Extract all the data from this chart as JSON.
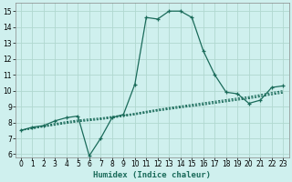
{
  "xlabel": "Humidex (Indice chaleur)",
  "bg_color": "#cff0ee",
  "grid_color": "#b0d8d0",
  "line_color": "#1a6b5a",
  "xlim": [
    -0.5,
    23.5
  ],
  "ylim": [
    5.8,
    15.5
  ],
  "xticks": [
    0,
    1,
    2,
    3,
    4,
    5,
    6,
    7,
    8,
    9,
    10,
    11,
    12,
    13,
    14,
    15,
    16,
    17,
    18,
    19,
    20,
    21,
    22,
    23
  ],
  "yticks": [
    6,
    7,
    8,
    9,
    10,
    11,
    12,
    13,
    14,
    15
  ],
  "line1_x": [
    0,
    1,
    2,
    3,
    4,
    5,
    6,
    7,
    8,
    9,
    10,
    11,
    12,
    13,
    14,
    15,
    16,
    17,
    18,
    19,
    20,
    21,
    22,
    23
  ],
  "line1_y": [
    7.5,
    7.7,
    7.8,
    8.1,
    8.3,
    8.4,
    5.9,
    7.0,
    8.3,
    8.5,
    10.4,
    14.6,
    14.5,
    15.0,
    15.0,
    14.6,
    12.5,
    11.0,
    9.9,
    9.8,
    9.2,
    9.4,
    10.2,
    10.3
  ],
  "line2_x": [
    0,
    1,
    2,
    3,
    4,
    5,
    6,
    7,
    8,
    9,
    10,
    11,
    12,
    13,
    14,
    15,
    16,
    17,
    18,
    19,
    20,
    21,
    22,
    23
  ],
  "line2_y": [
    7.5,
    7.65,
    7.8,
    7.93,
    8.05,
    8.15,
    8.22,
    8.28,
    8.37,
    8.47,
    8.57,
    8.7,
    8.82,
    8.93,
    9.03,
    9.13,
    9.23,
    9.33,
    9.43,
    9.53,
    9.62,
    9.75,
    9.88,
    10.0
  ],
  "line3_x": [
    0,
    1,
    2,
    3,
    4,
    5,
    6,
    7,
    8,
    9,
    10,
    11,
    12,
    13,
    14,
    15,
    16,
    17,
    18,
    19,
    20,
    21,
    22,
    23
  ],
  "line3_y": [
    7.5,
    7.62,
    7.75,
    7.87,
    7.99,
    8.09,
    8.16,
    8.23,
    8.33,
    8.43,
    8.53,
    8.65,
    8.77,
    8.88,
    8.98,
    9.07,
    9.16,
    9.26,
    9.36,
    9.46,
    9.55,
    9.67,
    9.8,
    9.92
  ],
  "line4_x": [
    0,
    1,
    2,
    3,
    4,
    5,
    6,
    7,
    8,
    9,
    10,
    11,
    12,
    13,
    14,
    15,
    16,
    17,
    18,
    19,
    20,
    21,
    22,
    23
  ],
  "line4_y": [
    7.5,
    7.6,
    7.72,
    7.83,
    7.94,
    8.04,
    8.11,
    8.18,
    8.28,
    8.38,
    8.48,
    8.6,
    8.72,
    8.82,
    8.92,
    9.01,
    9.1,
    9.2,
    9.3,
    9.4,
    9.49,
    9.61,
    9.74,
    9.85
  ]
}
